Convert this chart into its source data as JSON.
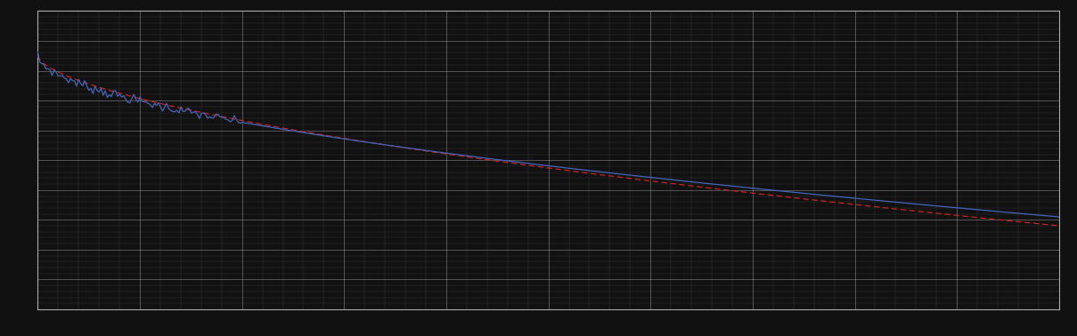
{
  "background_color": "#111111",
  "plot_bg_color": "#111111",
  "grid_color": "#cccccc",
  "spine_color": "#aaaaaa",
  "blue_line_color": "#4466bb",
  "red_line_color": "#cc2222",
  "figsize": [
    12.09,
    3.78
  ],
  "dpi": 100,
  "x_min": 0,
  "x_max": 100,
  "y_min": 0,
  "y_max": 100,
  "n_x_major": 10,
  "n_y_major": 10,
  "n_x_minor": 5,
  "n_y_minor": 5
}
